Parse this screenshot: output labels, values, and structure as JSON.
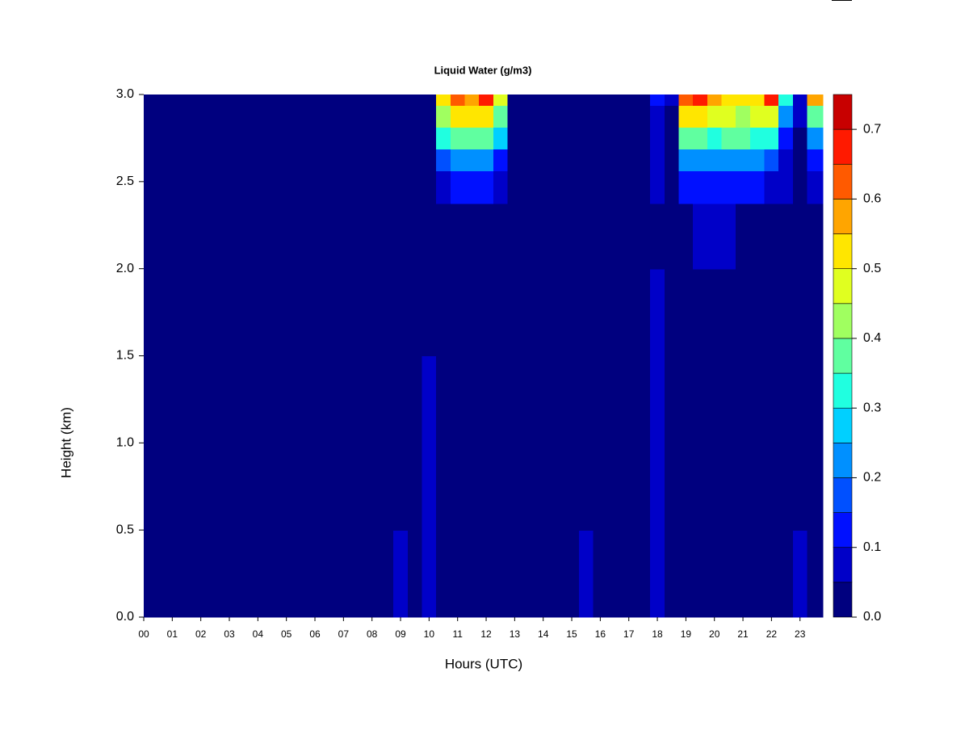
{
  "chart_data": {
    "type": "contour",
    "title": "Liquid Water (g/m3)",
    "x_label": "Hours (UTC)",
    "y_label": "Height (km)",
    "xlim": [
      0,
      23.8
    ],
    "ylim": [
      0,
      3
    ],
    "xticks": [
      {
        "value": 0,
        "label": "00"
      },
      {
        "value": 1,
        "label": "01"
      },
      {
        "value": 2,
        "label": "02"
      },
      {
        "value": 3,
        "label": "03"
      },
      {
        "value": 4,
        "label": "04"
      },
      {
        "value": 5,
        "label": "05"
      },
      {
        "value": 6,
        "label": "06"
      },
      {
        "value": 7,
        "label": "07"
      },
      {
        "value": 8,
        "label": "08"
      },
      {
        "value": 9,
        "label": "09"
      },
      {
        "value": 10,
        "label": "10"
      },
      {
        "value": 11,
        "label": "11"
      },
      {
        "value": 12,
        "label": "12"
      },
      {
        "value": 13,
        "label": "13"
      },
      {
        "value": 14,
        "label": "14"
      },
      {
        "value": 15,
        "label": "15"
      },
      {
        "value": 16,
        "label": "16"
      },
      {
        "value": 17,
        "label": "17"
      },
      {
        "value": 18,
        "label": "18"
      },
      {
        "value": 19,
        "label": "19"
      },
      {
        "value": 20,
        "label": "20"
      },
      {
        "value": 21,
        "label": "21"
      },
      {
        "value": 22,
        "label": "22"
      },
      {
        "value": 23,
        "label": "23"
      }
    ],
    "yticks": [
      {
        "value": 0,
        "label": "0.0"
      },
      {
        "value": 0.5,
        "label": "0.5"
      },
      {
        "value": 1,
        "label": "1.0"
      },
      {
        "value": 1.5,
        "label": "1.5"
      },
      {
        "value": 2,
        "label": "2.0"
      },
      {
        "value": 2.5,
        "label": "2.5"
      },
      {
        "value": 3,
        "label": "3.0"
      }
    ],
    "levels": [
      0,
      0.05,
      0.1,
      0.15,
      0.2,
      0.25,
      0.3,
      0.35,
      0.4,
      0.45,
      0.5,
      0.55,
      0.6,
      0.65,
      0.7,
      0.75
    ],
    "colors": [
      "#00007f",
      "#0000c8",
      "#0010ff",
      "#0050ff",
      "#0090ff",
      "#00d0ff",
      "#20ffe0",
      "#60ffa0",
      "#a0ff60",
      "#e0ff20",
      "#ffe600",
      "#ffa500",
      "#ff5a00",
      "#ff1a00",
      "#c80000",
      "#800000"
    ],
    "colorbar_ticks": [
      {
        "value": 0,
        "label": "0.0"
      },
      0.1,
      0.2,
      0.3,
      0.4,
      0.5,
      0.6,
      0.7
    ],
    "x": [
      0,
      0.5,
      1,
      1.5,
      2,
      2.5,
      3,
      3.5,
      4,
      4.5,
      5,
      5.5,
      6,
      6.5,
      7,
      7.5,
      8,
      8.5,
      9,
      9.5,
      10,
      10.5,
      11,
      11.5,
      12,
      12.5,
      13,
      13.5,
      14,
      14.5,
      15,
      15.5,
      16,
      16.5,
      17,
      17.5,
      18,
      18.5,
      19,
      19.5,
      20,
      20.5,
      21,
      21.5,
      22,
      22.5,
      23,
      23.5
    ],
    "y": [
      0.25,
      0.75,
      1.25,
      1.75,
      2.25,
      2.5,
      2.625,
      2.75,
      2.875,
      3
    ],
    "z": [
      [
        0,
        0,
        0,
        0,
        0,
        0,
        0,
        0,
        0,
        0,
        0,
        0,
        0,
        0,
        0,
        0,
        0,
        0,
        0.05,
        0,
        0.07,
        0,
        0,
        0,
        0,
        0,
        0,
        0,
        0,
        0,
        0,
        0.06,
        0,
        0,
        0,
        0,
        0.07,
        0,
        0,
        0,
        0,
        0,
        0,
        0,
        0,
        0,
        0.05,
        0
      ],
      [
        0,
        0,
        0,
        0,
        0,
        0,
        0,
        0,
        0,
        0,
        0,
        0,
        0,
        0,
        0,
        0,
        0,
        0,
        0,
        0,
        0.06,
        0,
        0,
        0,
        0,
        0,
        0,
        0,
        0,
        0,
        0,
        0,
        0,
        0,
        0,
        0,
        0.06,
        0,
        0,
        0,
        0,
        0,
        0,
        0,
        0,
        0,
        0,
        0
      ],
      [
        0,
        0,
        0,
        0,
        0,
        0,
        0,
        0,
        0,
        0,
        0,
        0,
        0,
        0,
        0,
        0,
        0,
        0,
        0,
        0,
        0.05,
        0,
        0,
        0,
        0,
        0,
        0,
        0,
        0,
        0,
        0,
        0,
        0,
        0,
        0,
        0,
        0.05,
        0,
        0,
        0,
        0,
        0,
        0,
        0,
        0,
        0,
        0,
        0
      ],
      [
        0,
        0,
        0,
        0,
        0,
        0,
        0,
        0,
        0,
        0,
        0,
        0,
        0,
        0,
        0,
        0,
        0,
        0,
        0,
        0,
        0,
        0,
        0,
        0,
        0,
        0,
        0,
        0,
        0,
        0,
        0,
        0,
        0,
        0,
        0,
        0,
        0.05,
        0,
        0,
        0,
        0,
        0,
        0,
        0,
        0,
        0,
        0,
        0
      ],
      [
        0,
        0,
        0,
        0,
        0,
        0,
        0,
        0,
        0,
        0,
        0,
        0,
        0,
        0,
        0,
        0,
        0,
        0,
        0,
        0,
        0,
        0.02,
        0.02,
        0.02,
        0.02,
        0.02,
        0,
        0,
        0,
        0,
        0,
        0,
        0,
        0,
        0,
        0,
        0,
        0,
        0.03,
        0.06,
        0.07,
        0.06,
        0.04,
        0.03,
        0.03,
        0.02,
        0,
        0.04
      ],
      [
        0,
        0,
        0,
        0,
        0,
        0,
        0,
        0,
        0,
        0,
        0,
        0,
        0,
        0,
        0,
        0,
        0,
        0,
        0,
        0,
        0,
        0.08,
        0.1,
        0.1,
        0.1,
        0.08,
        0,
        0,
        0,
        0,
        0,
        0,
        0,
        0,
        0,
        0,
        0.05,
        0,
        0.1,
        0.12,
        0.12,
        0.1,
        0.1,
        0.1,
        0.08,
        0.06,
        0,
        0.06
      ],
      [
        0,
        0,
        0,
        0,
        0,
        0,
        0,
        0,
        0,
        0,
        0,
        0,
        0,
        0,
        0,
        0,
        0,
        0,
        0,
        0,
        0,
        0.15,
        0.2,
        0.2,
        0.2,
        0.12,
        0,
        0,
        0,
        0,
        0,
        0,
        0,
        0,
        0,
        0,
        0.05,
        0,
        0.2,
        0.22,
        0.2,
        0.2,
        0.2,
        0.2,
        0.15,
        0.08,
        0,
        0.1
      ],
      [
        0,
        0,
        0,
        0,
        0,
        0,
        0,
        0,
        0,
        0,
        0,
        0,
        0,
        0,
        0,
        0,
        0,
        0,
        0,
        0,
        0,
        0.3,
        0.35,
        0.35,
        0.35,
        0.25,
        0,
        0,
        0,
        0,
        0,
        0,
        0,
        0,
        0,
        0,
        0.06,
        0,
        0.35,
        0.35,
        0.32,
        0.35,
        0.35,
        0.32,
        0.3,
        0.12,
        0,
        0.2
      ],
      [
        0,
        0,
        0,
        0,
        0,
        0,
        0,
        0,
        0,
        0,
        0,
        0,
        0,
        0,
        0,
        0,
        0,
        0,
        0,
        0,
        0,
        0.4,
        0.5,
        0.5,
        0.5,
        0.35,
        0,
        0,
        0,
        0,
        0,
        0,
        0,
        0,
        0,
        0,
        0.08,
        0,
        0.5,
        0.5,
        0.45,
        0.45,
        0.42,
        0.45,
        0.45,
        0.2,
        0.05,
        0.35
      ],
      [
        0,
        0,
        0,
        0,
        0,
        0,
        0,
        0,
        0,
        0,
        0,
        0,
        0,
        0,
        0,
        0,
        0,
        0,
        0,
        0,
        0,
        0.5,
        0.6,
        0.55,
        0.65,
        0.45,
        0,
        0,
        0,
        0,
        0,
        0,
        0,
        0,
        0,
        0,
        0.1,
        0.05,
        0.6,
        0.65,
        0.55,
        0.5,
        0.5,
        0.5,
        0.65,
        0.3,
        0.08,
        0.55
      ]
    ]
  }
}
